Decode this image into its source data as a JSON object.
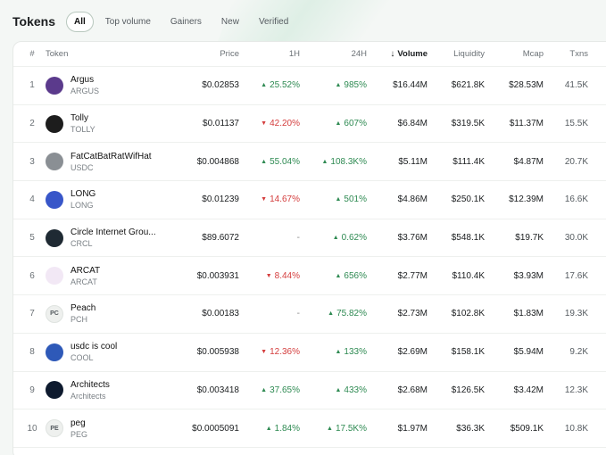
{
  "header": {
    "title": "Tokens",
    "filters": [
      "All",
      "Top volume",
      "Gainers",
      "New",
      "Verified"
    ]
  },
  "columns": {
    "num": "#",
    "token": "Token",
    "price": "Price",
    "h1": "1H",
    "h24": "24H",
    "volume": "Volume",
    "liquidity": "Liquidity",
    "mcap": "Mcap",
    "txns": "Txns"
  },
  "tokens": [
    {
      "num": "1",
      "name": "Argus",
      "symbol": "ARGUS",
      "price": "$0.02853",
      "h1": "25.52%",
      "h1dir": "up",
      "h24": "985%",
      "h24dir": "up",
      "volume": "$16.44M",
      "liquidity": "$621.8K",
      "mcap": "$28.53M",
      "txns": "41.5K",
      "icon": "argus-icon",
      "color": "#5b3a8c"
    },
    {
      "num": "2",
      "name": "Tolly",
      "symbol": "TOLLY",
      "price": "$0.01137",
      "h1": "42.20%",
      "h1dir": "down",
      "h24": "607%",
      "h24dir": "up",
      "volume": "$6.84M",
      "liquidity": "$319.5K",
      "mcap": "$11.37M",
      "txns": "15.5K",
      "icon": "tolly-icon",
      "color": "#1d1d1d"
    },
    {
      "num": "3",
      "name": "FatCatBatRatWifHat",
      "symbol": "USDC",
      "price": "$0.004868",
      "h1": "55.04%",
      "h1dir": "up",
      "h24": "108.3K%",
      "h24dir": "up",
      "volume": "$5.11M",
      "liquidity": "$111.4K",
      "mcap": "$4.87M",
      "txns": "20.7K",
      "icon": "cat-icon",
      "color": "#8a8f94"
    },
    {
      "num": "4",
      "name": "LONG",
      "symbol": "LONG",
      "price": "$0.01239",
      "h1": "14.67%",
      "h1dir": "down",
      "h24": "501%",
      "h24dir": "up",
      "volume": "$4.86M",
      "liquidity": "$250.1K",
      "mcap": "$12.39M",
      "txns": "16.6K",
      "icon": "long-icon",
      "color": "#3856c9"
    },
    {
      "num": "5",
      "name": "Circle Internet Grou...",
      "symbol": "CRCL",
      "price": "$89.6072",
      "h1": "-",
      "h1dir": "flat",
      "h24": "0.62%",
      "h24dir": "up",
      "volume": "$3.76M",
      "liquidity": "$548.1K",
      "mcap": "$19.7K",
      "txns": "30.0K",
      "icon": "circle-icon",
      "color": "#1f2a33"
    },
    {
      "num": "6",
      "name": "ARCAT",
      "symbol": "ARCAT",
      "price": "$0.003931",
      "h1": "8.44%",
      "h1dir": "down",
      "h24": "656%",
      "h24dir": "up",
      "volume": "$2.77M",
      "liquidity": "$110.4K",
      "mcap": "$3.93M",
      "txns": "17.6K",
      "icon": "arcat-icon",
      "color": "#f2e8f5"
    },
    {
      "num": "7",
      "name": "Peach",
      "symbol": "PCH",
      "price": "$0.00183",
      "h1": "-",
      "h1dir": "flat",
      "h24": "75.82%",
      "h24dir": "up",
      "volume": "$2.73M",
      "liquidity": "$102.8K",
      "mcap": "$1.83M",
      "txns": "19.3K",
      "icon": "placeholder-icon",
      "initials": "PC",
      "color": "#eef0ee"
    },
    {
      "num": "8",
      "name": "usdc is cool",
      "symbol": "COOL",
      "price": "$0.005938",
      "h1": "12.36%",
      "h1dir": "down",
      "h24": "133%",
      "h24dir": "up",
      "volume": "$2.69M",
      "liquidity": "$158.1K",
      "mcap": "$5.94M",
      "txns": "9.2K",
      "icon": "cool-icon",
      "color": "#2e59b8"
    },
    {
      "num": "9",
      "name": "Architects",
      "symbol": "Architects",
      "price": "$0.003418",
      "h1": "37.65%",
      "h1dir": "up",
      "h24": "433%",
      "h24dir": "up",
      "volume": "$2.68M",
      "liquidity": "$126.5K",
      "mcap": "$3.42M",
      "txns": "12.3K",
      "icon": "architects-icon",
      "color": "#0e1a2e"
    },
    {
      "num": "10",
      "name": "peg",
      "symbol": "PEG",
      "price": "$0.0005091",
      "h1": "1.84%",
      "h1dir": "up",
      "h24": "17.5K%",
      "h24dir": "up",
      "volume": "$1.97M",
      "liquidity": "$36.3K",
      "mcap": "$509.1K",
      "txns": "10.8K",
      "icon": "placeholder-icon",
      "initials": "PE",
      "color": "#eef0ee"
    }
  ]
}
